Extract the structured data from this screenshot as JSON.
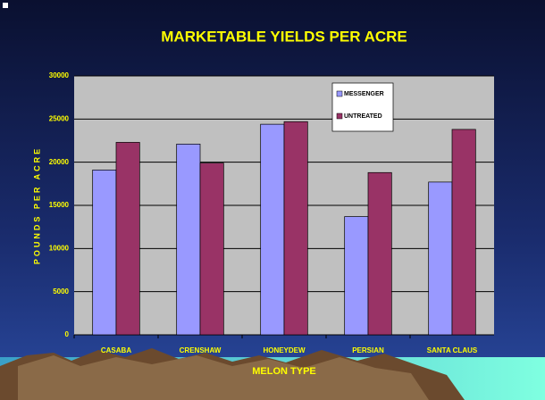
{
  "chart_data": {
    "type": "bar",
    "title": "MARKETABLE YIELDS PER ACRE",
    "x_label": "MELON TYPE",
    "y_label": "POUNDS PER ACRE",
    "categories": [
      "CASABA",
      "CRENSHAW",
      "HONEYDEW",
      "PERSIAN",
      "SANTA CLAUS"
    ],
    "series": [
      {
        "name": "MESSENGER",
        "color": "#9999ff",
        "values": [
          19100,
          22100,
          24400,
          13700,
          17700
        ]
      },
      {
        "name": "UNTREATED",
        "color": "#993366",
        "values": [
          22300,
          19900,
          24700,
          18800,
          23800
        ]
      }
    ],
    "ylim": [
      0,
      30000
    ],
    "yticks": [
      0,
      5000,
      10000,
      15000,
      20000,
      25000,
      30000
    ],
    "grid": true,
    "legend": "upper right"
  }
}
